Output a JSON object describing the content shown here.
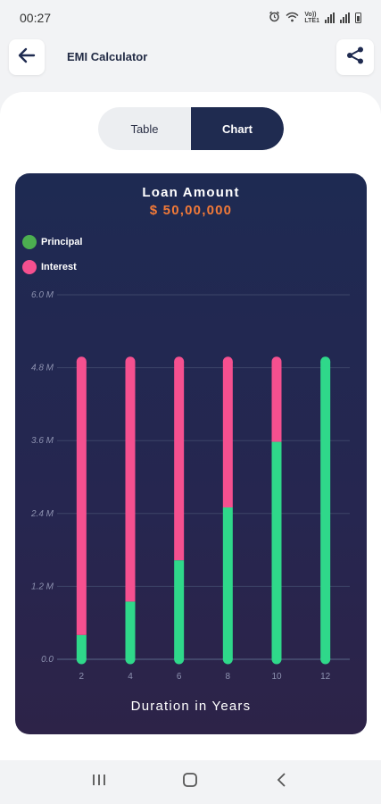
{
  "status_bar": {
    "time": "00:27",
    "net_label": "Vo))\nLTE1"
  },
  "header": {
    "title": "EMI Calculator",
    "back_icon": "arrow-left-icon",
    "share_icon": "share-icon"
  },
  "view_toggle": {
    "options": [
      {
        "label": "Table",
        "active": false
      },
      {
        "label": "Chart",
        "active": true
      }
    ]
  },
  "chart_data": {
    "type": "bar",
    "stacked": true,
    "title": "Loan Amount",
    "subtitle": "$ 50,00,000",
    "xlabel": "Duration in Years",
    "ylabel": "",
    "categories": [
      "2",
      "4",
      "6",
      "8",
      "10",
      "12"
    ],
    "y_tick_labels": [
      "0.0",
      "1.2 M",
      "2.4 M",
      "3.6 M",
      "4.8 M",
      "6.0 M"
    ],
    "y_ticks": [
      0,
      1.2,
      2.4,
      3.6,
      4.8,
      6.0
    ],
    "ylim": [
      0,
      6.0
    ],
    "grid": true,
    "legend_position": "top-left",
    "series": [
      {
        "name": "Principal",
        "color": "#2fd88a",
        "values": [
          0.4,
          0.95,
          1.63,
          2.5,
          3.58,
          4.9
        ]
      },
      {
        "name": "Interest",
        "color": "#f5508f",
        "values": [
          4.5,
          3.95,
          3.27,
          2.4,
          1.32,
          0.0
        ]
      }
    ]
  },
  "colors": {
    "accent": "#1f2b50",
    "amount": "#f27a38"
  }
}
